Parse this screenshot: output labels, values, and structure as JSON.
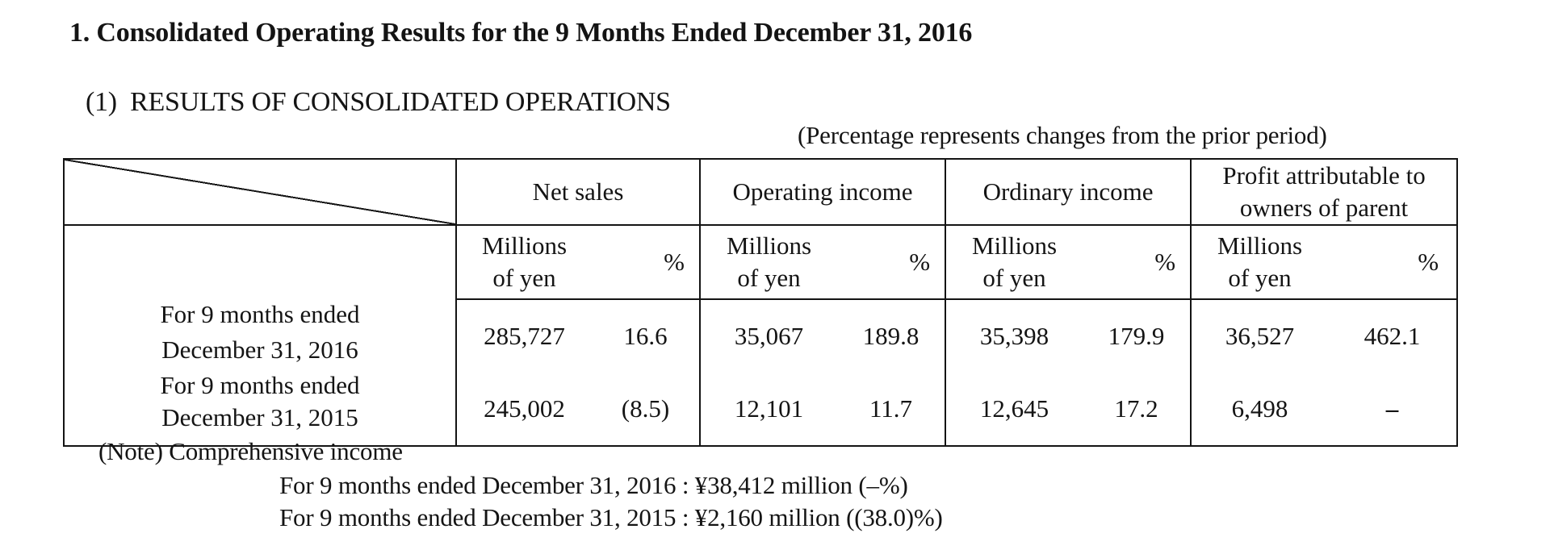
{
  "heading": "1. Consolidated Operating Results for the 9 Months Ended December 31, 2016",
  "subheading": "(1)  RESULTS OF CONSOLIDATED OPERATIONS",
  "percentage_note": "(Percentage represents changes from the prior period)",
  "table": {
    "columns": [
      {
        "label": "Net sales"
      },
      {
        "label": "Operating income"
      },
      {
        "label": "Ordinary income"
      },
      {
        "label_line1": "Profit attributable to",
        "label_line2": "owners of parent"
      }
    ],
    "unit_line1": "Millions",
    "unit_line2": "of yen",
    "percent_symbol": "%",
    "rows": [
      {
        "label_line1": "For 9 months ended",
        "label_line2": "December 31, 2016",
        "cells": [
          "285,727",
          "16.6",
          "35,067",
          "189.8",
          "35,398",
          "179.9",
          "36,527",
          "462.1"
        ]
      },
      {
        "label_line1": "For 9 months ended",
        "label_line2": "December 31, 2015",
        "cells": [
          "245,002",
          "(8.5)",
          "12,101",
          "11.7",
          "12,645",
          "17.2",
          "6,498",
          "‒"
        ]
      }
    ]
  },
  "note": {
    "title": "(Note) Comprehensive income",
    "line1": "For 9 months ended December 31, 2016 : ¥38,412 million (‒%)",
    "line2": "For 9 months ended December 31, 2015 : ¥2,160 million ((38.0)%)"
  }
}
